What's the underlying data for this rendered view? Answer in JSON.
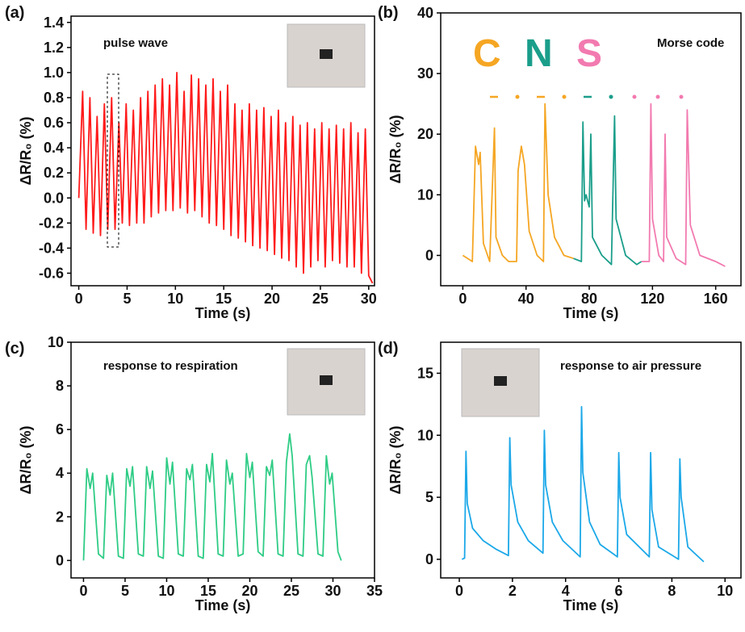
{
  "chart_data": [
    {
      "type": "line",
      "panel": "(a)",
      "annotation": "pulse wave",
      "xlabel": "Time (s)",
      "ylabel": "ΔR/R₀ (%)",
      "xlim": [
        -0.8,
        30.6
      ],
      "xticks": [
        0,
        5,
        10,
        15,
        20,
        25,
        30
      ],
      "ylim": [
        -0.7,
        1.45
      ],
      "yticks": [
        -0.6,
        -0.4,
        -0.2,
        {
          "value": 0,
          "label": "0.0"
        },
        0.2,
        0.4,
        0.6,
        0.8,
        {
          "value": 1,
          "label": "1.0"
        },
        1.2,
        1.4
      ],
      "series": [
        {
          "color": "#ff1a1a",
          "x": [
            0,
            0.4,
            0.75,
            1.15,
            1.5,
            1.9,
            2.25,
            2.65,
            3.0,
            3.4,
            3.75,
            4.15,
            4.5,
            4.9,
            5.25,
            5.65,
            6.0,
            6.4,
            6.75,
            7.15,
            7.5,
            7.9,
            8.25,
            8.65,
            9.0,
            9.4,
            9.75,
            10.15,
            10.5,
            10.9,
            11.25,
            11.65,
            12.0,
            12.4,
            12.75,
            13.15,
            13.5,
            13.9,
            14.25,
            14.65,
            15.0,
            15.4,
            15.75,
            16.15,
            16.5,
            16.9,
            17.25,
            17.65,
            18.0,
            18.4,
            18.75,
            19.15,
            19.5,
            19.9,
            20.25,
            20.65,
            21.0,
            21.4,
            21.75,
            22.15,
            22.5,
            22.9,
            23.25,
            23.65,
            24.0,
            24.4,
            24.75,
            25.15,
            25.5,
            25.9,
            26.25,
            26.65,
            27.0,
            27.4,
            27.75,
            28.15,
            28.5,
            28.9,
            29.25,
            29.65,
            30.0,
            30.4
          ],
          "values": [
            0.0,
            0.85,
            -0.25,
            0.8,
            -0.28,
            0.65,
            -0.3,
            0.75,
            -0.25,
            0.8,
            -0.25,
            0.6,
            -0.2,
            0.75,
            -0.22,
            0.7,
            -0.2,
            0.8,
            -0.2,
            0.85,
            -0.15,
            0.9,
            -0.12,
            0.95,
            -0.1,
            0.9,
            -0.1,
            1.0,
            -0.08,
            0.85,
            -0.12,
            0.98,
            -0.1,
            0.95,
            -0.15,
            0.9,
            -0.2,
            0.95,
            -0.22,
            0.85,
            -0.25,
            0.9,
            -0.3,
            0.75,
            -0.32,
            0.7,
            -0.35,
            0.75,
            -0.38,
            0.7,
            -0.4,
            0.72,
            -0.42,
            0.65,
            -0.45,
            0.7,
            -0.48,
            0.6,
            -0.5,
            0.65,
            -0.55,
            0.58,
            -0.6,
            0.6,
            -0.55,
            0.55,
            -0.5,
            0.6,
            -0.55,
            0.55,
            -0.5,
            0.58,
            -0.52,
            0.55,
            -0.55,
            0.6,
            -0.55,
            0.52,
            -0.6,
            0.55,
            -0.62,
            -0.68
          ]
        }
      ]
    },
    {
      "type": "line",
      "panel": "(b)",
      "annotation": "Morse code",
      "letters": [
        "C",
        "N",
        "S"
      ],
      "xlabel": "Time (s)",
      "ylabel": "ΔR/R₀ (%)",
      "xlim": [
        -14,
        176
      ],
      "xticks": [
        0,
        40,
        80,
        120,
        160
      ],
      "ylim": [
        -5,
        40
      ],
      "yticks": [
        0,
        10,
        20,
        30,
        40
      ],
      "series": [
        {
          "color": "#f5a623",
          "x": [
            0,
            6,
            8,
            10,
            11,
            13,
            17,
            20,
            21,
            25,
            29,
            34,
            35,
            37,
            39,
            42,
            47,
            51,
            52,
            54,
            58,
            64,
            70
          ],
          "values": [
            0,
            -1,
            18,
            15,
            17,
            2,
            -1,
            21,
            3,
            0,
            -1,
            -1,
            14,
            18,
            15,
            4,
            0,
            -1,
            25,
            10,
            3,
            0,
            -0.5
          ]
        },
        {
          "color": "#1a9e8a",
          "x": [
            70,
            75,
            76,
            77,
            78,
            80,
            81,
            82,
            88,
            94,
            96,
            97,
            103,
            110,
            113
          ],
          "values": [
            -0.5,
            -1,
            22,
            9,
            10,
            8,
            20,
            3,
            0,
            -1.5,
            23,
            6,
            0,
            -1.5,
            -1
          ]
        },
        {
          "color": "#f27ab0",
          "x": [
            113,
            118,
            119,
            120,
            124,
            127,
            128,
            129,
            135,
            141,
            142,
            144,
            150,
            160,
            166
          ],
          "values": [
            -1,
            -1,
            25,
            6,
            0,
            -1,
            20,
            3,
            -0.5,
            -1.5,
            24,
            5,
            0,
            -1,
            -1.8
          ]
        }
      ]
    },
    {
      "type": "line",
      "panel": "(c)",
      "annotation": "response to respiration",
      "xlabel": "Time (s)",
      "ylabel": "ΔR/R₀ (%)",
      "xlim": [
        -1.5,
        35
      ],
      "xticks": [
        0,
        5,
        10,
        15,
        20,
        25,
        30,
        35
      ],
      "ylim": [
        -0.8,
        10
      ],
      "yticks": [
        0,
        2,
        4,
        6,
        8,
        10
      ],
      "series": [
        {
          "color": "#2ecc85",
          "x": [
            0,
            0.4,
            0.8,
            1.1,
            1.8,
            2.4,
            2.8,
            3.2,
            3.5,
            4.2,
            4.8,
            5.2,
            5.6,
            5.9,
            6.6,
            7.2,
            7.6,
            8.0,
            8.3,
            9.0,
            9.6,
            10.0,
            10.4,
            10.7,
            11.4,
            12.0,
            12.4,
            12.8,
            13.1,
            13.8,
            14.4,
            14.8,
            15.2,
            15.5,
            16.2,
            16.8,
            17.2,
            17.6,
            17.9,
            18.6,
            19.2,
            19.6,
            20.0,
            20.3,
            21.0,
            21.6,
            22.0,
            22.4,
            22.7,
            23.4,
            24.0,
            24.4,
            24.8,
            25.1,
            25.8,
            26.4,
            26.8,
            27.2,
            27.5,
            28.2,
            28.8,
            29.2,
            29.6,
            29.9,
            30.6,
            31.0
          ],
          "values": [
            0,
            4.2,
            3.3,
            4.0,
            0.3,
            0.1,
            3.9,
            3.0,
            4.0,
            0.2,
            0.1,
            4.2,
            3.4,
            4.3,
            0.3,
            0.2,
            4.3,
            3.3,
            4.1,
            0.2,
            0.1,
            4.7,
            3.5,
            4.5,
            0.3,
            0.2,
            4.2,
            3.7,
            4.4,
            0.2,
            0.1,
            4.4,
            3.6,
            4.9,
            0.3,
            0.2,
            4.6,
            3.5,
            4.0,
            0.2,
            0.3,
            4.9,
            3.8,
            4.5,
            0.4,
            0.2,
            4.3,
            3.9,
            4.6,
            0.3,
            0.2,
            4.5,
            5.8,
            4.8,
            0.3,
            0.2,
            4.4,
            4.8,
            3.8,
            0.3,
            0.2,
            4.8,
            3.5,
            4.0,
            0.4,
            0.0
          ]
        }
      ]
    },
    {
      "type": "line",
      "panel": "(d)",
      "annotation": "response to air pressure",
      "xlabel": "Time (s)",
      "ylabel": "ΔR/R₀ (%)",
      "xlim": [
        -0.7,
        10.6
      ],
      "xticks": [
        0,
        2,
        4,
        6,
        8,
        10
      ],
      "ylim": [
        -1.5,
        17.5
      ],
      "yticks": [
        0,
        5,
        10,
        15
      ],
      "series": [
        {
          "color": "#1ba8e8",
          "x": [
            0.1,
            0.2,
            0.25,
            0.3,
            0.5,
            0.9,
            1.4,
            1.85,
            1.9,
            1.95,
            2.2,
            2.6,
            3.15,
            3.2,
            3.25,
            3.5,
            3.9,
            4.55,
            4.6,
            4.65,
            4.9,
            5.3,
            5.95,
            6.0,
            6.05,
            6.3,
            7.15,
            7.2,
            7.25,
            7.5,
            8.25,
            8.3,
            8.35,
            8.6,
            9.0,
            9.2
          ],
          "values": [
            0,
            0.1,
            8.7,
            4.5,
            2.5,
            1.5,
            0.8,
            0.3,
            9.8,
            6,
            3,
            1.5,
            0.5,
            10.4,
            6,
            3,
            1.5,
            0.2,
            12.3,
            7,
            3,
            1.2,
            0.2,
            8.6,
            5,
            2,
            0.2,
            8.6,
            4,
            1,
            0,
            8.1,
            5,
            1,
            0.2,
            -0.2
          ]
        }
      ]
    }
  ]
}
